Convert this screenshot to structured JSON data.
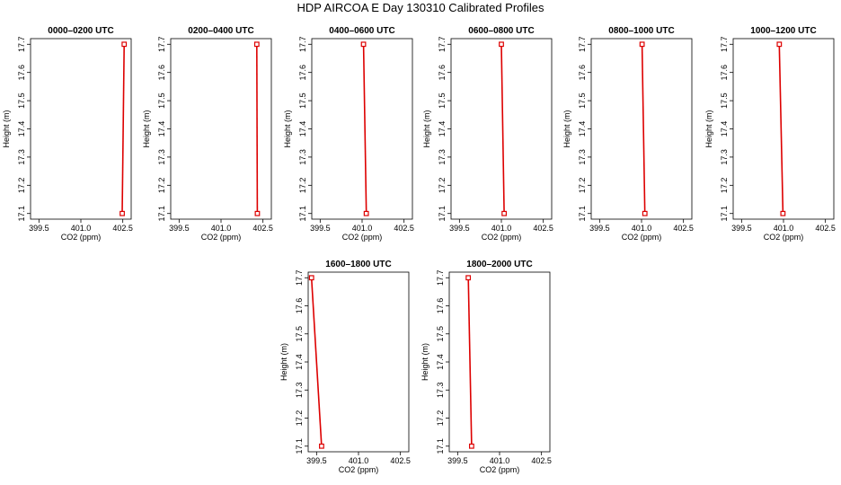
{
  "title": "HDP AIRCOA E  Day 130310  Calibrated Profiles",
  "colors": {
    "series": "#dd0000",
    "axis": "#000000",
    "background": "#ffffff"
  },
  "chart_data": [
    {
      "type": "line",
      "title": "0000–0200 UTC",
      "xlabel": "CO2 (ppm)",
      "ylabel": "Height (m)",
      "xlim": [
        399.2,
        402.8
      ],
      "ylim": [
        17.08,
        17.72
      ],
      "xticks": [
        "399.5",
        "401.0",
        "402.5"
      ],
      "yticks": [
        "17.1",
        "17.2",
        "17.3",
        "17.4",
        "17.5",
        "17.6",
        "17.7"
      ],
      "x": [
        402.48,
        402.55
      ],
      "y": [
        17.1,
        17.7
      ],
      "grid": false
    },
    {
      "type": "line",
      "title": "0200–0400 UTC",
      "xlabel": "CO2 (ppm)",
      "ylabel": "Height (m)",
      "xlim": [
        399.2,
        402.8
      ],
      "ylim": [
        17.08,
        17.72
      ],
      "xticks": [
        "399.5",
        "401.0",
        "402.5"
      ],
      "yticks": [
        "17.1",
        "17.2",
        "17.3",
        "17.4",
        "17.5",
        "17.6",
        "17.7"
      ],
      "x": [
        402.3,
        402.28
      ],
      "y": [
        17.1,
        17.7
      ],
      "grid": false
    },
    {
      "type": "line",
      "title": "0400–0600 UTC",
      "xlabel": "CO2 (ppm)",
      "ylabel": "Height (m)",
      "xlim": [
        399.2,
        402.8
      ],
      "ylim": [
        17.08,
        17.72
      ],
      "xticks": [
        "399.5",
        "401.0",
        "402.5"
      ],
      "yticks": [
        "17.1",
        "17.2",
        "17.3",
        "17.4",
        "17.5",
        "17.6",
        "17.7"
      ],
      "x": [
        401.15,
        401.05
      ],
      "y": [
        17.1,
        17.7
      ],
      "grid": false
    },
    {
      "type": "line",
      "title": "0600–0800 UTC",
      "xlabel": "CO2 (ppm)",
      "ylabel": "Height (m)",
      "xlim": [
        399.2,
        402.8
      ],
      "ylim": [
        17.08,
        17.72
      ],
      "xticks": [
        "399.5",
        "401.0",
        "402.5"
      ],
      "yticks": [
        "17.1",
        "17.2",
        "17.3",
        "17.4",
        "17.5",
        "17.6",
        "17.7"
      ],
      "x": [
        401.1,
        401.0
      ],
      "y": [
        17.1,
        17.7
      ],
      "grid": false
    },
    {
      "type": "line",
      "title": "0800–1000 UTC",
      "xlabel": "CO2 (ppm)",
      "ylabel": "Height (m)",
      "xlim": [
        399.2,
        402.8
      ],
      "ylim": [
        17.08,
        17.72
      ],
      "xticks": [
        "399.5",
        "401.0",
        "402.5"
      ],
      "yticks": [
        "17.1",
        "17.2",
        "17.3",
        "17.4",
        "17.5",
        "17.6",
        "17.7"
      ],
      "x": [
        401.12,
        401.02
      ],
      "y": [
        17.1,
        17.7
      ],
      "grid": false
    },
    {
      "type": "line",
      "title": "1000–1200 UTC",
      "xlabel": "CO2 (ppm)",
      "ylabel": "Height (m)",
      "xlim": [
        399.2,
        402.8
      ],
      "ylim": [
        17.08,
        17.72
      ],
      "xticks": [
        "399.5",
        "401.0",
        "402.5"
      ],
      "yticks": [
        "17.1",
        "17.2",
        "17.3",
        "17.4",
        "17.5",
        "17.6",
        "17.7"
      ],
      "x": [
        400.98,
        400.85
      ],
      "y": [
        17.1,
        17.7
      ],
      "grid": false
    },
    {
      "type": "line",
      "title": "1600–1800 UTC",
      "xlabel": "CO2 (ppm)",
      "ylabel": "Height (m)",
      "xlim": [
        399.2,
        402.8
      ],
      "ylim": [
        17.08,
        17.72
      ],
      "xticks": [
        "399.5",
        "401.0",
        "402.5"
      ],
      "yticks": [
        "17.1",
        "17.2",
        "17.3",
        "17.4",
        "17.5",
        "17.6",
        "17.7"
      ],
      "x": [
        399.68,
        399.32
      ],
      "y": [
        17.1,
        17.7
      ],
      "grid": false
    },
    {
      "type": "line",
      "title": "1800–2000 UTC",
      "xlabel": "CO2 (ppm)",
      "ylabel": "Height (m)",
      "xlim": [
        399.2,
        402.8
      ],
      "ylim": [
        17.08,
        17.72
      ],
      "xticks": [
        "399.5",
        "401.0",
        "402.5"
      ],
      "yticks": [
        "17.1",
        "17.2",
        "17.3",
        "17.4",
        "17.5",
        "17.6",
        "17.7"
      ],
      "x": [
        400.0,
        399.88
      ],
      "y": [
        17.1,
        17.7
      ],
      "grid": false
    }
  ]
}
